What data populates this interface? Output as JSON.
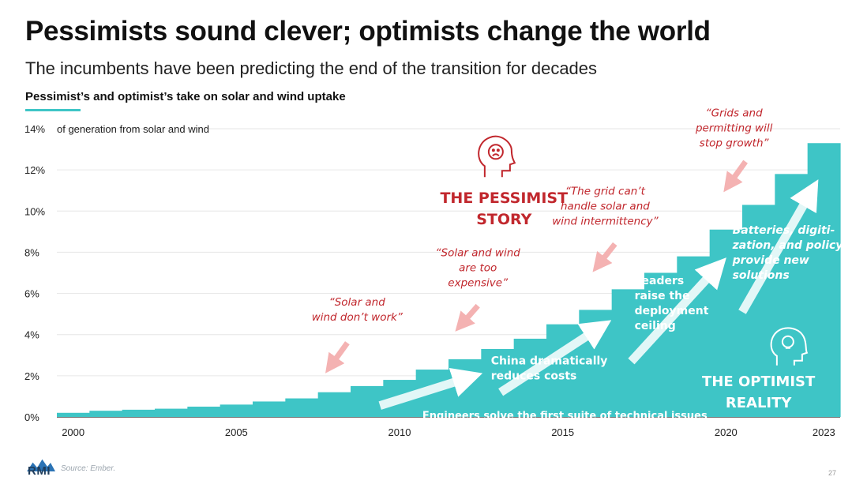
{
  "header": {
    "title": "Pessimists sound clever; optimists change the world",
    "subtitle": "The incumbents have been predicting the end of the transition for decades",
    "chart_title": "Pessimist’s and optimist’s take on solar and wind uptake"
  },
  "footer": {
    "logo_text": "RMI",
    "source": "Source: Ember.",
    "page_number": "27"
  },
  "colors": {
    "area": "#3ec5c6",
    "pessimist": "#c1272d",
    "optimist_text": "#ffffff",
    "arrow_pessimist": "#f4b2b2",
    "arrow_optimist": "#ffffff",
    "title_rule": "#3ec5c6"
  },
  "icons": [
    "sad-head-icon",
    "lightbulb-head-icon",
    "rmi-logo"
  ],
  "chart_data": {
    "type": "area",
    "style": "step",
    "x": [
      2000,
      2001,
      2002,
      2003,
      2004,
      2005,
      2006,
      2007,
      2008,
      2009,
      2010,
      2011,
      2012,
      2013,
      2014,
      2015,
      2016,
      2017,
      2018,
      2019,
      2020,
      2021,
      2022,
      2023
    ],
    "values": [
      0.2,
      0.3,
      0.35,
      0.4,
      0.5,
      0.6,
      0.75,
      0.9,
      1.2,
      1.5,
      1.8,
      2.3,
      2.8,
      3.3,
      3.8,
      4.5,
      5.2,
      6.2,
      7.0,
      7.8,
      9.1,
      10.3,
      11.8,
      13.3
    ],
    "unit": "%",
    "ylabel": "of generation from solar and wind",
    "ylim": [
      0,
      14
    ],
    "xlim": [
      2000,
      2024
    ],
    "y_ticks": [
      "0%",
      "2%",
      "4%",
      "6%",
      "8%",
      "10%",
      "12%",
      "14%"
    ],
    "x_ticks": [
      "2000",
      "2005",
      "2010",
      "2015",
      "2020",
      "2023"
    ],
    "grid": true,
    "pessimist_story": {
      "heading": [
        "THE PESSIMIST",
        "STORY"
      ],
      "quotes": [
        {
          "lines": [
            "“Solar and",
            "wind don’t work”"
          ],
          "year": 2008
        },
        {
          "lines": [
            "“Solar and wind",
            "are too",
            "expensive”"
          ],
          "year": 2012
        },
        {
          "lines": [
            "“The grid can’t",
            "handle solar and",
            "wind intermittency”"
          ],
          "year": 2016
        },
        {
          "lines": [
            "“Grids and",
            "permitting will",
            "stop growth”"
          ],
          "year": 2020
        }
      ]
    },
    "optimist_reality": {
      "heading": [
        "THE OPTIMIST",
        "REALITY"
      ],
      "annotations": [
        {
          "lines": [
            "Engineers solve the first suite of technical issues"
          ]
        },
        {
          "lines": [
            "China dramatically",
            "reduces costs"
          ]
        },
        {
          "lines": [
            "Leaders",
            "raise the",
            "deployment",
            "ceiling"
          ]
        },
        {
          "lines": [
            "Batteries, digiti-",
            "zation, and policy",
            "provide new",
            "solutions"
          ]
        }
      ]
    }
  }
}
